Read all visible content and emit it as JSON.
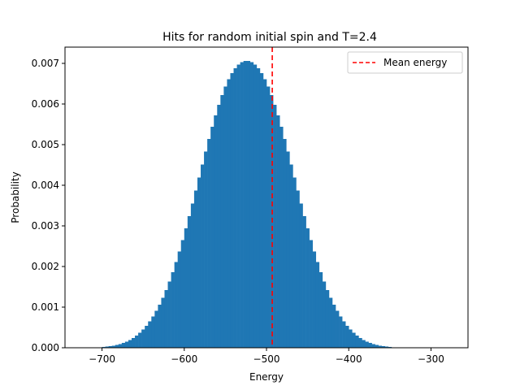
{
  "chart_data": {
    "type": "bar",
    "title": "Hits for random initial spin and T=2.4",
    "xlabel": "Energy",
    "ylabel": "Probability",
    "xlim": [
      -745,
      -255
    ],
    "ylim": [
      0,
      0.0074
    ],
    "xticks": [
      -700,
      -600,
      -500,
      -400,
      -300
    ],
    "yticks": [
      0.0,
      0.001,
      0.002,
      0.003,
      0.004,
      0.005,
      0.006,
      0.007
    ],
    "bar_color": "#1f77b4",
    "bin_width": 4,
    "bins": {
      "x_start": [
        -700,
        -696,
        -692,
        -688,
        -684,
        -680,
        -676,
        -672,
        -668,
        -664,
        -660,
        -656,
        -652,
        -648,
        -644,
        -640,
        -636,
        -632,
        -628,
        -624,
        -620,
        -616,
        -612,
        -608,
        -604,
        -600,
        -596,
        -592,
        -588,
        -584,
        -580,
        -576,
        -572,
        -568,
        -564,
        -560,
        -556,
        -552,
        -548,
        -544,
        -540,
        -536,
        -532,
        -528,
        -524,
        -520,
        -516,
        -512,
        -508,
        -504,
        -500,
        -496,
        -492,
        -488,
        -484,
        -480,
        -476,
        -472,
        -468,
        -464,
        -460,
        -456,
        -452,
        -448,
        -444,
        -440,
        -436,
        -432,
        -428,
        -424,
        -420,
        -416,
        -412,
        -408,
        -404,
        -400,
        -396,
        -392,
        -388,
        -384,
        -380,
        -376,
        -372,
        -368,
        -364,
        -360,
        -356,
        -352,
        -348,
        -344,
        -340,
        -336,
        -332,
        -328,
        -324,
        -320,
        -316,
        -312,
        -308,
        -304,
        -300,
        -296,
        -292,
        -288,
        -284,
        -280,
        -276,
        -272,
        -268,
        -264
      ],
      "probability": [
        2e-05,
        3e-05,
        4e-05,
        5e-05,
        7e-05,
        9e-05,
        0.00012,
        0.00015,
        0.00019,
        0.00024,
        0.0003,
        0.00037,
        0.00045,
        0.00054,
        0.00065,
        0.00077,
        0.00091,
        0.00106,
        0.00123,
        0.00142,
        0.00163,
        0.00186,
        0.00211,
        0.00237,
        0.00265,
        0.00294,
        0.00324,
        0.00355,
        0.00387,
        0.00419,
        0.00451,
        0.00483,
        0.00514,
        0.00544,
        0.00572,
        0.00598,
        0.00622,
        0.00643,
        0.00661,
        0.00676,
        0.00688,
        0.00697,
        0.00703,
        0.00706,
        0.00706,
        0.00703,
        0.00697,
        0.00688,
        0.00676,
        0.00661,
        0.00643,
        0.00622,
        0.00598,
        0.00572,
        0.00544,
        0.00514,
        0.00483,
        0.00451,
        0.00419,
        0.00387,
        0.00355,
        0.00324,
        0.00294,
        0.00265,
        0.00237,
        0.00211,
        0.00186,
        0.00163,
        0.00142,
        0.00123,
        0.00106,
        0.00091,
        0.00077,
        0.00065,
        0.00054,
        0.00045,
        0.00037,
        0.0003,
        0.00024,
        0.00019,
        0.00015,
        0.00012,
        9e-05,
        7e-05,
        5e-05,
        4e-05,
        3e-05,
        2e-05,
        1e-05,
        1e-05,
        0.0,
        0.0,
        0.0,
        0.0,
        0.0,
        0.0,
        0.0,
        0.0,
        0.0,
        0.0,
        0.0,
        0.0,
        0.0,
        0.0,
        0.0,
        0.0,
        0.0,
        0.0,
        0.0,
        0.0
      ]
    },
    "mean_line": {
      "x": -493,
      "label": "Mean energy",
      "color": "#ff0000",
      "style": "dashed"
    },
    "legend": {
      "placement": "top-right",
      "entries": [
        "Mean energy"
      ]
    },
    "grid": false
  }
}
